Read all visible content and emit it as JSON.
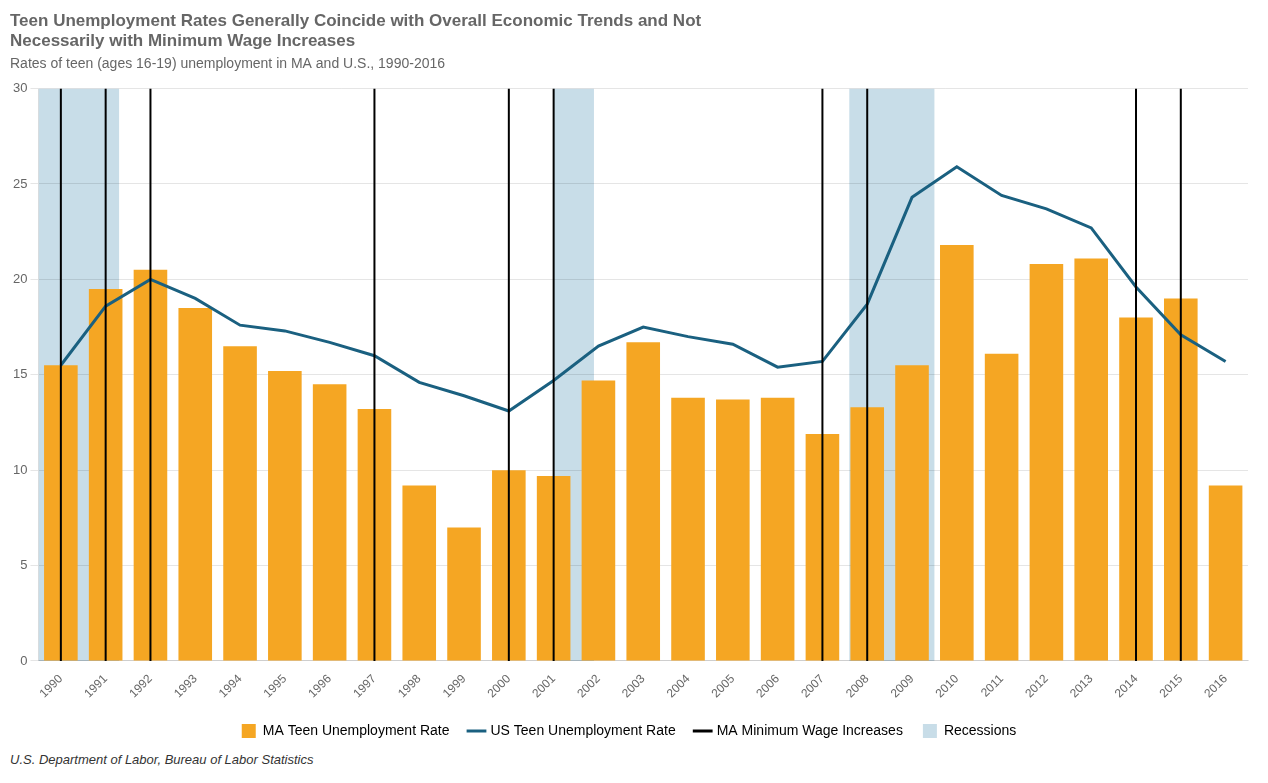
{
  "chart_data": {
    "type": "bar",
    "title": [
      "Teen Unemployment Rates Generally Coincide with Overall Economic Trends and Not",
      "Necessarily with Minimum Wage Increases"
    ],
    "subtitle": "Rates of teen (ages 16-19) unemployment in MA and U.S., 1990-2016",
    "source": "U.S. Department of Labor, Bureau of Labor Statistics",
    "x": [
      1990,
      1991,
      1992,
      1993,
      1994,
      1995,
      1996,
      1997,
      1998,
      1999,
      2000,
      2001,
      2002,
      2003,
      2004,
      2005,
      2006,
      2007,
      2008,
      2009,
      2010,
      2011,
      2012,
      2013,
      2014,
      2015,
      2016
    ],
    "series": [
      {
        "name": "MA Teen Unemployment Rate",
        "type": "bar",
        "color": "#F5A623",
        "values": [
          15.5,
          19.5,
          20.5,
          18.5,
          16.5,
          15.2,
          14.5,
          13.2,
          9.2,
          7.0,
          10.0,
          9.7,
          14.7,
          16.7,
          13.8,
          13.7,
          13.8,
          11.9,
          13.3,
          15.5,
          21.8,
          16.1,
          20.8,
          21.1,
          18.0,
          19.0,
          9.2
        ]
      },
      {
        "name": "US Teen Unemployment Rate",
        "type": "line",
        "color": "#1A6080",
        "values": [
          15.5,
          18.6,
          20.0,
          19.0,
          17.6,
          17.3,
          16.7,
          16.0,
          14.6,
          13.9,
          13.1,
          14.7,
          16.5,
          17.5,
          17.0,
          16.6,
          15.4,
          15.7,
          18.7,
          24.3,
          25.9,
          24.4,
          23.7,
          22.7,
          19.6,
          17.1,
          15.7
        ]
      },
      {
        "name": "MA Minimum Wage Increases",
        "type": "vline",
        "color": "#000000",
        "x": [
          1990,
          1991,
          1992,
          1997,
          2000,
          2001,
          2007,
          2008,
          2014,
          2015
        ]
      },
      {
        "name": "Recessions",
        "type": "span",
        "color": "#C8DDE8",
        "ranges": [
          [
            1989.5,
            1991.3
          ],
          [
            2001.0,
            2001.9
          ],
          [
            2007.6,
            2009.5
          ]
        ]
      }
    ],
    "xlim": [
      1989.5,
      2016.5
    ],
    "xticks": [
      1990,
      1991,
      1992,
      1993,
      1994,
      1995,
      1996,
      1997,
      1998,
      1999,
      2000,
      2001,
      2002,
      2003,
      2004,
      2005,
      2006,
      2007,
      2008,
      2009,
      2010,
      2011,
      2012,
      2013,
      2014,
      2015,
      2016
    ],
    "ylim": [
      0,
      30
    ],
    "yticks": [
      0,
      5,
      10,
      15,
      20,
      25,
      30
    ],
    "grid": "y",
    "legend": "bottom"
  }
}
